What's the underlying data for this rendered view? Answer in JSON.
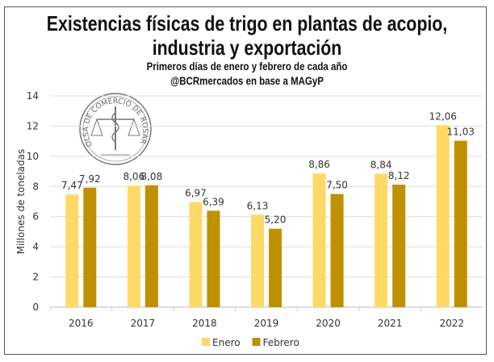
{
  "chart_data": {
    "type": "bar",
    "title": "Existencias físicas de trigo en plantas de acopio, industria y exportación",
    "title_lines": [
      "Existencias físicas de trigo en plantas de acopio,",
      "industria y exportación"
    ],
    "subtitle": "Primeros días de enero y febrero de cada año",
    "source": "@BCRmercados en base a MAGyP",
    "xlabel": "",
    "ylabel": "Millones de toneladas",
    "ylim": [
      0,
      14
    ],
    "yticks": [
      0,
      2,
      4,
      6,
      8,
      10,
      12,
      14
    ],
    "grid": true,
    "legend_position": "bottom",
    "categories": [
      "2016",
      "2017",
      "2018",
      "2019",
      "2020",
      "2021",
      "2022"
    ],
    "series": [
      {
        "name": "Enero",
        "color": "#FFD966",
        "values": [
          7.47,
          8.06,
          6.97,
          6.13,
          8.86,
          8.84,
          12.06
        ],
        "labels": [
          "7,47",
          "8,06",
          "6,97",
          "6,13",
          "8,86",
          "8,84",
          "12,06"
        ]
      },
      {
        "name": "Febrero",
        "color": "#BF9000",
        "values": [
          7.92,
          8.08,
          6.39,
          5.2,
          7.5,
          8.12,
          11.03
        ],
        "labels": [
          "7,92",
          "8,08",
          "6,39",
          "5,20",
          "7,50",
          "8,12",
          "11,03"
        ]
      }
    ]
  },
  "logo": {
    "text": "BOLSA DE COMERCIO DE ROSARIO"
  }
}
